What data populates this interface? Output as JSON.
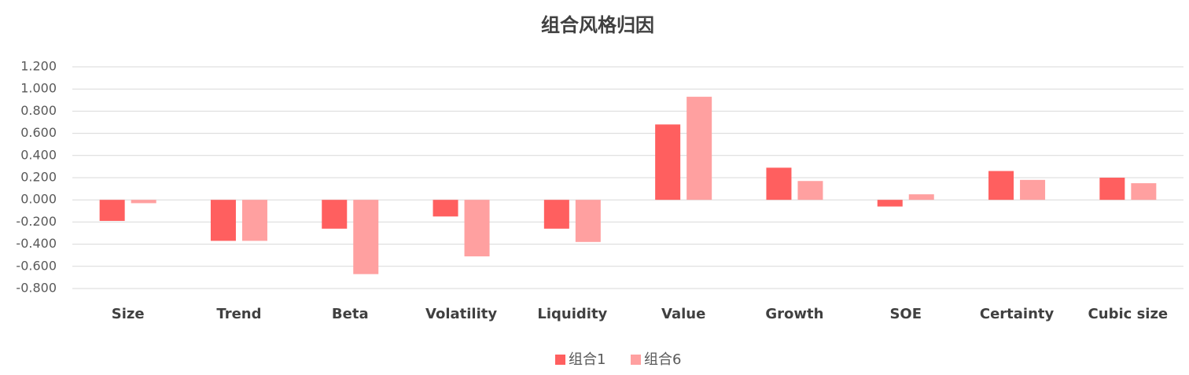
{
  "chart_data": {
    "type": "bar",
    "title": "组合风格归因",
    "categories": [
      "Size",
      "Trend",
      "Beta",
      "Volatility",
      "Liquidity",
      "Value",
      "Growth",
      "SOE",
      "Certainty",
      "Cubic size"
    ],
    "series": [
      {
        "name": "组合1",
        "color": "#ff5f5f",
        "values": [
          -0.19,
          -0.37,
          -0.26,
          -0.15,
          -0.26,
          0.68,
          0.29,
          -0.06,
          0.26,
          0.2
        ]
      },
      {
        "name": "组合6",
        "color": "#ffa0a0",
        "values": [
          -0.03,
          -0.37,
          -0.67,
          -0.51,
          -0.38,
          0.93,
          0.17,
          0.05,
          0.18,
          0.15
        ]
      }
    ],
    "ylim": [
      -0.8,
      1.2
    ],
    "yticks": [
      {
        "value": -0.8,
        "label": "-0.800"
      },
      {
        "value": -0.6,
        "label": "-0.600"
      },
      {
        "value": -0.4,
        "label": "-0.400"
      },
      {
        "value": -0.2,
        "label": "-0.200"
      },
      {
        "value": 0,
        "label": "0.000"
      },
      {
        "value": 0.2,
        "label": "0.200"
      },
      {
        "value": 0.4,
        "label": "0.400"
      },
      {
        "value": 0.6,
        "label": "0.600"
      },
      {
        "value": 0.8,
        "label": "0.800"
      },
      {
        "value": 1.0,
        "label": "1.000"
      },
      {
        "value": 1.2,
        "label": "1.200"
      }
    ],
    "grid": true,
    "legend": "bottom"
  }
}
